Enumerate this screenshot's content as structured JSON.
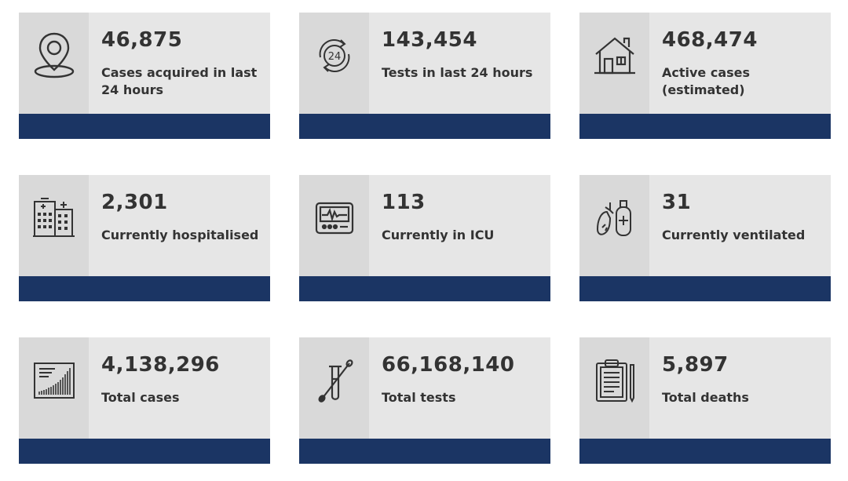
{
  "colors": {
    "card_bg": "#e6e6e6",
    "icon_bg": "#d9d9d9",
    "bar": "#1b3564",
    "text": "#333333"
  },
  "stats": [
    {
      "value": "46,875",
      "label": "Cases acquired in last 24 hours",
      "icon": "location-pin-icon"
    },
    {
      "value": "143,454",
      "label": "Tests in last 24 hours",
      "icon": "24-hour-cycle-icon"
    },
    {
      "value": "468,474",
      "label": "Active cases (estimated)",
      "icon": "house-icon"
    },
    {
      "value": "2,301",
      "label": "Currently hospitalised",
      "icon": "hospital-building-icon"
    },
    {
      "value": "113",
      "label": "Currently in ICU",
      "icon": "heart-monitor-icon"
    },
    {
      "value": "31",
      "label": "Currently ventilated",
      "icon": "lungs-oxygen-icon"
    },
    {
      "value": "4,138,296",
      "label": "Total cases",
      "icon": "rising-chart-icon"
    },
    {
      "value": "66,168,140",
      "label": "Total tests",
      "icon": "test-tube-swab-icon"
    },
    {
      "value": "5,897",
      "label": "Total deaths",
      "icon": "clipboard-report-icon"
    }
  ]
}
